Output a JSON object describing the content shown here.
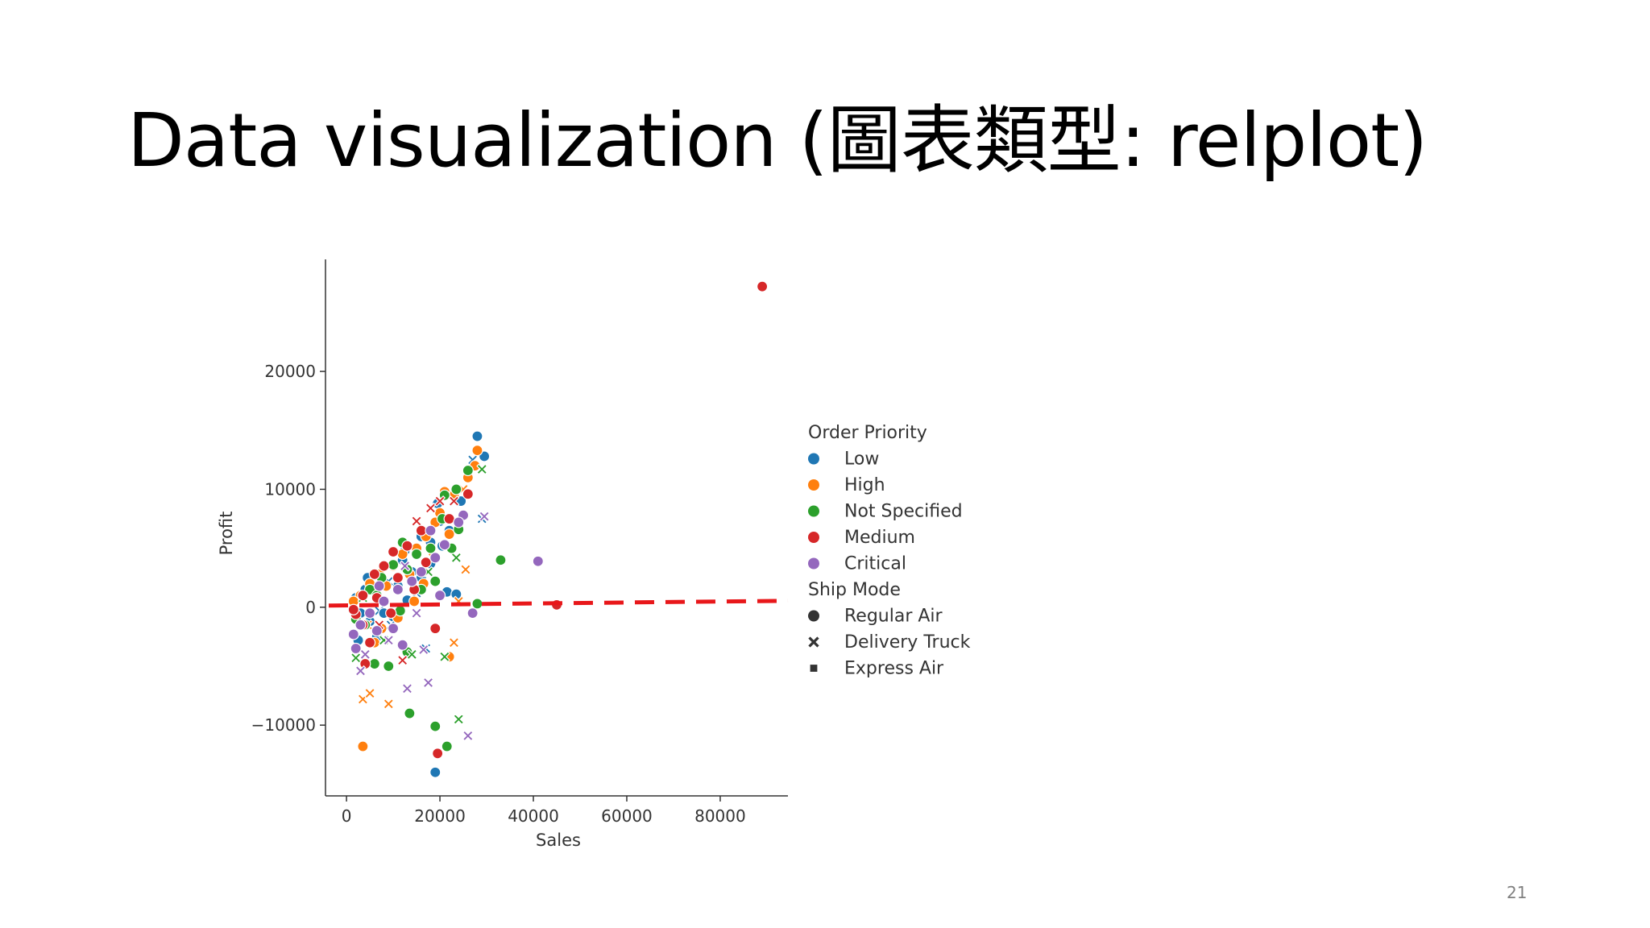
{
  "slide": {
    "title": "Data visualization (圖表類型: relplot)",
    "page_number": "21"
  },
  "chart_data": {
    "type": "scatter",
    "title": "",
    "xlabel": "Sales",
    "ylabel": "Profit",
    "xlim": [
      -4500,
      94500
    ],
    "ylim": [
      -16000,
      29500
    ],
    "xticks": [
      0,
      20000,
      40000,
      60000,
      80000
    ],
    "xtick_labels": [
      "0",
      "20000",
      "40000",
      "60000",
      "80000"
    ],
    "yticks": [
      -10000,
      0,
      10000,
      20000
    ],
    "ytick_labels": [
      "−10000",
      "0",
      "10000",
      "20000"
    ],
    "grid": false,
    "legend": {
      "placement": "right",
      "hue_title": "Order Priority",
      "style_title": "Ship Mode",
      "hue": [
        {
          "name": "Low",
          "color": "#1f77b4"
        },
        {
          "name": "High",
          "color": "#ff7f0e"
        },
        {
          "name": "Not Specified",
          "color": "#2ca02c"
        },
        {
          "name": "Medium",
          "color": "#d62728"
        },
        {
          "name": "Critical",
          "color": "#9467bd"
        }
      ],
      "style": [
        {
          "name": "Regular Air",
          "marker": "circle"
        },
        {
          "name": "Delivery Truck",
          "marker": "x"
        },
        {
          "name": "Express Air",
          "marker": "square"
        }
      ]
    },
    "reference_line": {
      "y": 0,
      "color": "#e8171a",
      "style": "dashed"
    },
    "series": [
      {
        "name": "Low",
        "color": "#1f77b4",
        "points": [
          [
            28000,
            14500,
            "o"
          ],
          [
            29500,
            12800,
            "o"
          ],
          [
            27000,
            12500,
            "x"
          ],
          [
            19500,
            8800,
            "o"
          ],
          [
            20000,
            7300,
            "o"
          ],
          [
            16000,
            6000,
            "o"
          ],
          [
            18000,
            5500,
            "o"
          ],
          [
            12000,
            4000,
            "o"
          ],
          [
            8000,
            3500,
            "o"
          ],
          [
            6000,
            2800,
            "o"
          ],
          [
            4000,
            1500,
            "o"
          ],
          [
            2000,
            800,
            "o"
          ],
          [
            3000,
            -500,
            "o"
          ],
          [
            5000,
            -1200,
            "o"
          ],
          [
            7000,
            -300,
            "x"
          ],
          [
            10000,
            -800,
            "o"
          ],
          [
            11000,
            1800,
            "o"
          ],
          [
            14000,
            3000,
            "o"
          ],
          [
            16000,
            2500,
            "o"
          ],
          [
            18000,
            3700,
            "o"
          ],
          [
            21500,
            1300,
            "o"
          ],
          [
            23500,
            1100,
            "o"
          ],
          [
            29000,
            7500,
            "x"
          ],
          [
            17000,
            -3500,
            "x"
          ],
          [
            19000,
            -14000,
            "o"
          ],
          [
            9000,
            2200,
            "x"
          ],
          [
            13000,
            600,
            "o"
          ],
          [
            15000,
            1200,
            "x"
          ],
          [
            12500,
            4800,
            "o"
          ],
          [
            22000,
            6500,
            "o"
          ],
          [
            24500,
            9000,
            "o"
          ],
          [
            2500,
            -2800,
            "o"
          ],
          [
            6500,
            -2500,
            "o"
          ],
          [
            9500,
            -1500,
            "x"
          ],
          [
            4500,
            2500,
            "o"
          ],
          [
            20500,
            5200,
            "o"
          ],
          [
            8000,
            -500,
            "o"
          ]
        ]
      },
      {
        "name": "High",
        "color": "#ff7f0e",
        "points": [
          [
            28000,
            13300,
            "o"
          ],
          [
            27500,
            12000,
            "o"
          ],
          [
            26000,
            11000,
            "o"
          ],
          [
            23000,
            9500,
            "o"
          ],
          [
            20000,
            8000,
            "o"
          ],
          [
            22000,
            6200,
            "o"
          ],
          [
            19000,
            7200,
            "o"
          ],
          [
            17000,
            6000,
            "o"
          ],
          [
            15000,
            5000,
            "o"
          ],
          [
            12000,
            4500,
            "o"
          ],
          [
            10000,
            3500,
            "o"
          ],
          [
            7000,
            2800,
            "o"
          ],
          [
            5000,
            2000,
            "o"
          ],
          [
            3000,
            1000,
            "o"
          ],
          [
            2000,
            -1000,
            "o"
          ],
          [
            4500,
            -1500,
            "x"
          ],
          [
            6000,
            -3000,
            "o"
          ],
          [
            3500,
            -7800,
            "x"
          ],
          [
            5000,
            -7300,
            "x"
          ],
          [
            9000,
            -8200,
            "x"
          ],
          [
            3500,
            -11800,
            "o"
          ],
          [
            23000,
            -3000,
            "x"
          ],
          [
            25500,
            3200,
            "x"
          ],
          [
            22000,
            -4200,
            "o"
          ],
          [
            24000,
            500,
            "x"
          ],
          [
            8500,
            1800,
            "o"
          ],
          [
            11000,
            -900,
            "o"
          ],
          [
            13500,
            2800,
            "o"
          ],
          [
            18500,
            4200,
            "x"
          ],
          [
            21000,
            9800,
            "o"
          ],
          [
            1500,
            500,
            "o"
          ],
          [
            7500,
            -1800,
            "o"
          ],
          [
            14500,
            500,
            "o"
          ],
          [
            16500,
            2000,
            "o"
          ],
          [
            25000,
            10000,
            "x"
          ]
        ]
      },
      {
        "name": "Not Specified",
        "color": "#2ca02c",
        "points": [
          [
            26000,
            11600,
            "o"
          ],
          [
            29000,
            11700,
            "x"
          ],
          [
            23500,
            10000,
            "o"
          ],
          [
            21000,
            9500,
            "o"
          ],
          [
            20500,
            7500,
            "o"
          ],
          [
            24000,
            6600,
            "o"
          ],
          [
            23500,
            4200,
            "x"
          ],
          [
            33000,
            4000,
            "o"
          ],
          [
            28000,
            300,
            "o"
          ],
          [
            18000,
            5000,
            "o"
          ],
          [
            15000,
            4500,
            "o"
          ],
          [
            13000,
            3200,
            "o"
          ],
          [
            10000,
            3600,
            "o"
          ],
          [
            7500,
            2500,
            "o"
          ],
          [
            5000,
            1500,
            "o"
          ],
          [
            3500,
            800,
            "x"
          ],
          [
            2000,
            -1000,
            "o"
          ],
          [
            4000,
            -1500,
            "o"
          ],
          [
            2000,
            -4300,
            "x"
          ],
          [
            6000,
            -4800,
            "o"
          ],
          [
            9000,
            -5000,
            "o"
          ],
          [
            13000,
            -3800,
            "o"
          ],
          [
            14000,
            -4000,
            "x"
          ],
          [
            21000,
            -4200,
            "x"
          ],
          [
            13500,
            -9000,
            "o"
          ],
          [
            19000,
            -10100,
            "o"
          ],
          [
            21500,
            -11800,
            "o"
          ],
          [
            24000,
            -9500,
            "x"
          ],
          [
            16000,
            1500,
            "o"
          ],
          [
            11500,
            -300,
            "o"
          ],
          [
            8000,
            -2800,
            "x"
          ],
          [
            6500,
            1000,
            "o"
          ],
          [
            19000,
            2200,
            "o"
          ],
          [
            22500,
            5000,
            "o"
          ],
          [
            12000,
            5500,
            "o"
          ],
          [
            17500,
            3000,
            "x"
          ]
        ]
      },
      {
        "name": "Medium",
        "color": "#d62728",
        "points": [
          [
            89000,
            27200,
            "o"
          ],
          [
            26000,
            9600,
            "o"
          ],
          [
            23000,
            9000,
            "x"
          ],
          [
            22000,
            7500,
            "o"
          ],
          [
            18000,
            8400,
            "x"
          ],
          [
            15000,
            7300,
            "x"
          ],
          [
            13000,
            5200,
            "o"
          ],
          [
            10000,
            4700,
            "o"
          ],
          [
            8000,
            3500,
            "o"
          ],
          [
            6000,
            2800,
            "o"
          ],
          [
            3500,
            1000,
            "o"
          ],
          [
            2000,
            -600,
            "o"
          ],
          [
            3500,
            -1500,
            "o"
          ],
          [
            5000,
            -3000,
            "o"
          ],
          [
            7000,
            -1500,
            "x"
          ],
          [
            12000,
            -4500,
            "x"
          ],
          [
            4000,
            -4800,
            "o"
          ],
          [
            19500,
            -12400,
            "o"
          ],
          [
            45000,
            200,
            "o"
          ],
          [
            19000,
            -1800,
            "o"
          ],
          [
            17000,
            3800,
            "o"
          ],
          [
            14500,
            1500,
            "o"
          ],
          [
            11000,
            2500,
            "o"
          ],
          [
            9500,
            -500,
            "o"
          ],
          [
            16000,
            6500,
            "o"
          ],
          [
            20000,
            9000,
            "x"
          ],
          [
            6500,
            800,
            "o"
          ],
          [
            1500,
            -200,
            "o"
          ]
        ]
      },
      {
        "name": "Critical",
        "color": "#9467bd",
        "points": [
          [
            41000,
            3900,
            "o"
          ],
          [
            25000,
            7800,
            "o"
          ],
          [
            29500,
            7700,
            "x"
          ],
          [
            24000,
            7200,
            "o"
          ],
          [
            21000,
            5300,
            "o"
          ],
          [
            19000,
            4200,
            "o"
          ],
          [
            16000,
            3000,
            "o"
          ],
          [
            14000,
            2200,
            "o"
          ],
          [
            11000,
            1500,
            "o"
          ],
          [
            8000,
            500,
            "o"
          ],
          [
            5000,
            -500,
            "o"
          ],
          [
            3000,
            -1500,
            "o"
          ],
          [
            2000,
            -3500,
            "o"
          ],
          [
            4000,
            -4000,
            "x"
          ],
          [
            3000,
            -5400,
            "x"
          ],
          [
            9000,
            -2800,
            "x"
          ],
          [
            12000,
            -3200,
            "o"
          ],
          [
            16500,
            -3600,
            "x"
          ],
          [
            13000,
            -6900,
            "x"
          ],
          [
            17500,
            -6400,
            "x"
          ],
          [
            26000,
            -10900,
            "x"
          ],
          [
            27000,
            -500,
            "o"
          ],
          [
            15000,
            -500,
            "x"
          ],
          [
            10000,
            -1800,
            "o"
          ],
          [
            6500,
            -2000,
            "o"
          ],
          [
            18000,
            6500,
            "o"
          ],
          [
            7000,
            1800,
            "o"
          ],
          [
            12500,
            3500,
            "x"
          ],
          [
            20000,
            1000,
            "o"
          ],
          [
            1500,
            -2300,
            "o"
          ]
        ]
      }
    ]
  }
}
